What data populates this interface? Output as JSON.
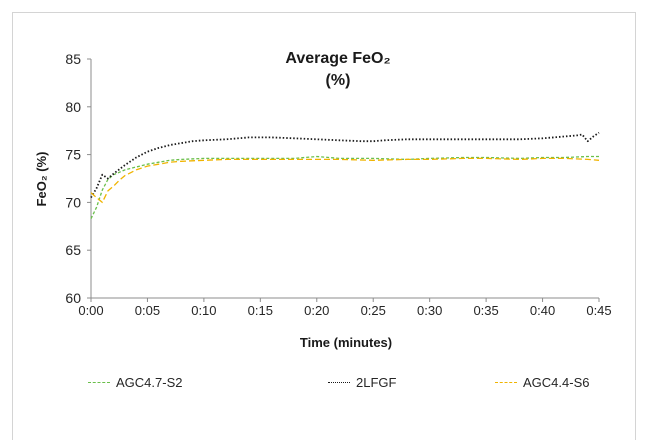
{
  "chart_data": {
    "type": "line",
    "title": "Average FeO₂",
    "title_line2": "(%)",
    "xlabel": "Time (minutes)",
    "ylabel": "FeO₂ (%)",
    "xlim": [
      0,
      45
    ],
    "ylim": [
      60,
      85
    ],
    "y_ticks": [
      60,
      65,
      70,
      75,
      80,
      85
    ],
    "x_ticks": [
      "0:00",
      "0:05",
      "0:10",
      "0:15",
      "0:20",
      "0:25",
      "0:30",
      "0:35",
      "0:40",
      "0:45"
    ],
    "x_tick_values": [
      0,
      5,
      10,
      15,
      20,
      25,
      30,
      35,
      40,
      45
    ],
    "grid": false,
    "legend_position": "bottom",
    "series": [
      {
        "name": "AGC4.7-S2",
        "color": "#6abf4b",
        "dash": "3,2",
        "x": [
          0,
          0.5,
          1,
          1.5,
          2,
          3,
          4,
          5,
          6,
          7,
          8,
          10,
          12,
          15,
          18,
          20,
          22,
          25,
          28,
          30,
          33,
          35,
          38,
          40,
          42,
          44,
          45
        ],
        "y": [
          68.3,
          69.5,
          71.3,
          72.4,
          72.9,
          73.4,
          73.7,
          74.0,
          74.2,
          74.4,
          74.5,
          74.6,
          74.6,
          74.6,
          74.6,
          74.8,
          74.6,
          74.6,
          74.5,
          74.6,
          74.7,
          74.7,
          74.6,
          74.7,
          74.7,
          74.8,
          74.8
        ]
      },
      {
        "name": "2LFGF",
        "color": "#1a1a1a",
        "dash": "1.5,2",
        "x": [
          0,
          0.5,
          1,
          1.5,
          2,
          3,
          4,
          5,
          6,
          7,
          8,
          9,
          10,
          12,
          14,
          15,
          16,
          18,
          20,
          22,
          24,
          25,
          26,
          28,
          30,
          32,
          34,
          35,
          36,
          38,
          40,
          41,
          42,
          43,
          43.5,
          44,
          44.5,
          45
        ],
        "y": [
          70.5,
          71.5,
          72.9,
          72.5,
          73.0,
          73.9,
          74.7,
          75.3,
          75.7,
          76.0,
          76.2,
          76.4,
          76.5,
          76.6,
          76.8,
          76.8,
          76.8,
          76.7,
          76.6,
          76.5,
          76.4,
          76.4,
          76.5,
          76.6,
          76.6,
          76.6,
          76.6,
          76.6,
          76.6,
          76.6,
          76.7,
          76.8,
          76.9,
          77.0,
          77.1,
          76.4,
          76.9,
          77.3
        ]
      },
      {
        "name": "AGC4.4-S6",
        "color": "#f0b400",
        "dash": "6,3",
        "x": [
          0,
          0.5,
          1,
          1.5,
          2,
          2.5,
          3,
          4,
          5,
          6,
          7,
          8,
          10,
          12,
          15,
          18,
          20,
          22,
          25,
          28,
          30,
          33,
          35,
          38,
          40,
          42,
          44,
          45
        ],
        "y": [
          71.0,
          70.5,
          70.0,
          71.2,
          71.7,
          72.3,
          72.8,
          73.4,
          73.8,
          74.0,
          74.2,
          74.3,
          74.4,
          74.5,
          74.5,
          74.5,
          74.5,
          74.5,
          74.4,
          74.5,
          74.5,
          74.6,
          74.6,
          74.5,
          74.6,
          74.6,
          74.5,
          74.4
        ]
      }
    ]
  }
}
